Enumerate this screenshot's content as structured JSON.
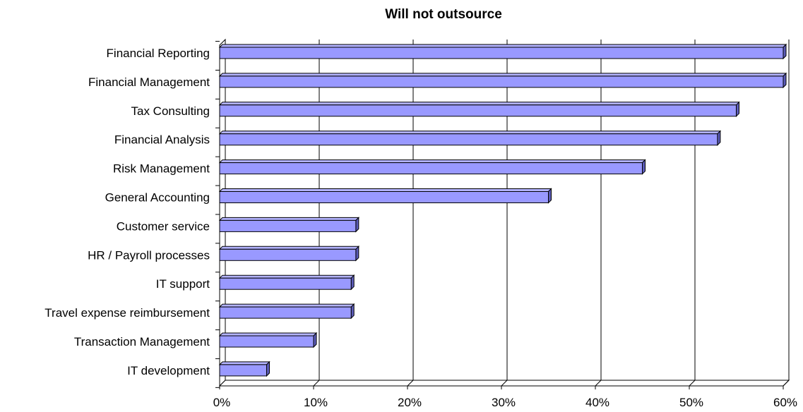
{
  "chart_data": {
    "type": "bar",
    "orientation": "horizontal",
    "title": "Will not outsource",
    "xlabel": "",
    "ylabel": "",
    "categories": [
      "Financial Reporting",
      "Financial Management",
      "Tax Consulting",
      "Financial Analysis",
      "Risk Management",
      "General Accounting",
      "Customer service",
      "HR / Payroll processes",
      "IT support",
      "Travel expense reimbursement",
      "Transaction Management",
      "IT development"
    ],
    "values": [
      60,
      60,
      55,
      53,
      45,
      35,
      14.5,
      14.5,
      14,
      14,
      10,
      5
    ],
    "xlim": [
      0,
      60
    ],
    "xticks": [
      "0%",
      "10%",
      "20%",
      "30%",
      "40%",
      "50%",
      "60%"
    ],
    "grid": true,
    "legend": "none",
    "colors": {
      "bar_front": "#9999ff",
      "bar_top": "#b3b3ff",
      "bar_side": "#5c5cb8",
      "outline": "#000000",
      "grid": "#000000"
    }
  }
}
